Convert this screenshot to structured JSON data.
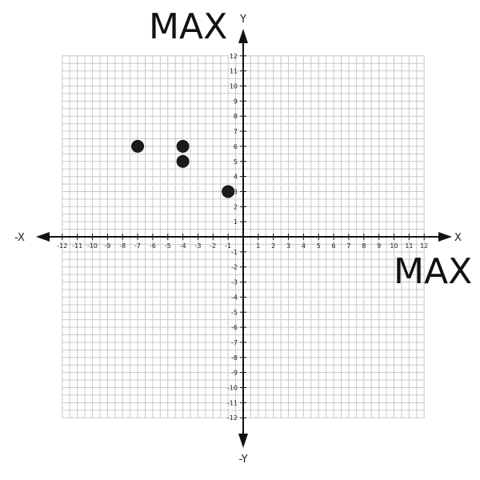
{
  "chart_data": {
    "type": "scatter",
    "xlim": [
      -12,
      12
    ],
    "ylim": [
      -12,
      12
    ],
    "grid": true,
    "axis_labels": {
      "x_positive": "X",
      "x_negative": "-X",
      "y_positive": "Y",
      "y_negative": "-Y"
    },
    "corner_labels": {
      "y_max": "MAX",
      "x_max": "MAX"
    },
    "x_ticks": [
      -12,
      -11,
      -10,
      -9,
      -8,
      -7,
      -6,
      -5,
      -4,
      -3,
      -2,
      -1,
      1,
      2,
      3,
      4,
      5,
      6,
      7,
      8,
      9,
      10,
      11,
      12
    ],
    "y_ticks": [
      -12,
      -11,
      -10,
      -9,
      -8,
      -7,
      -6,
      -5,
      -4,
      -3,
      -2,
      -1,
      1,
      2,
      3,
      4,
      5,
      6,
      7,
      8,
      9,
      10,
      11,
      12
    ],
    "points": [
      {
        "x": -7,
        "y": 6
      },
      {
        "x": -4,
        "y": 6
      },
      {
        "x": -4,
        "y": 5
      },
      {
        "x": -1,
        "y": 3
      }
    ],
    "point_color": "#1a1a1a",
    "grid_color": "#c8c8c8",
    "axis_color": "#111111"
  }
}
